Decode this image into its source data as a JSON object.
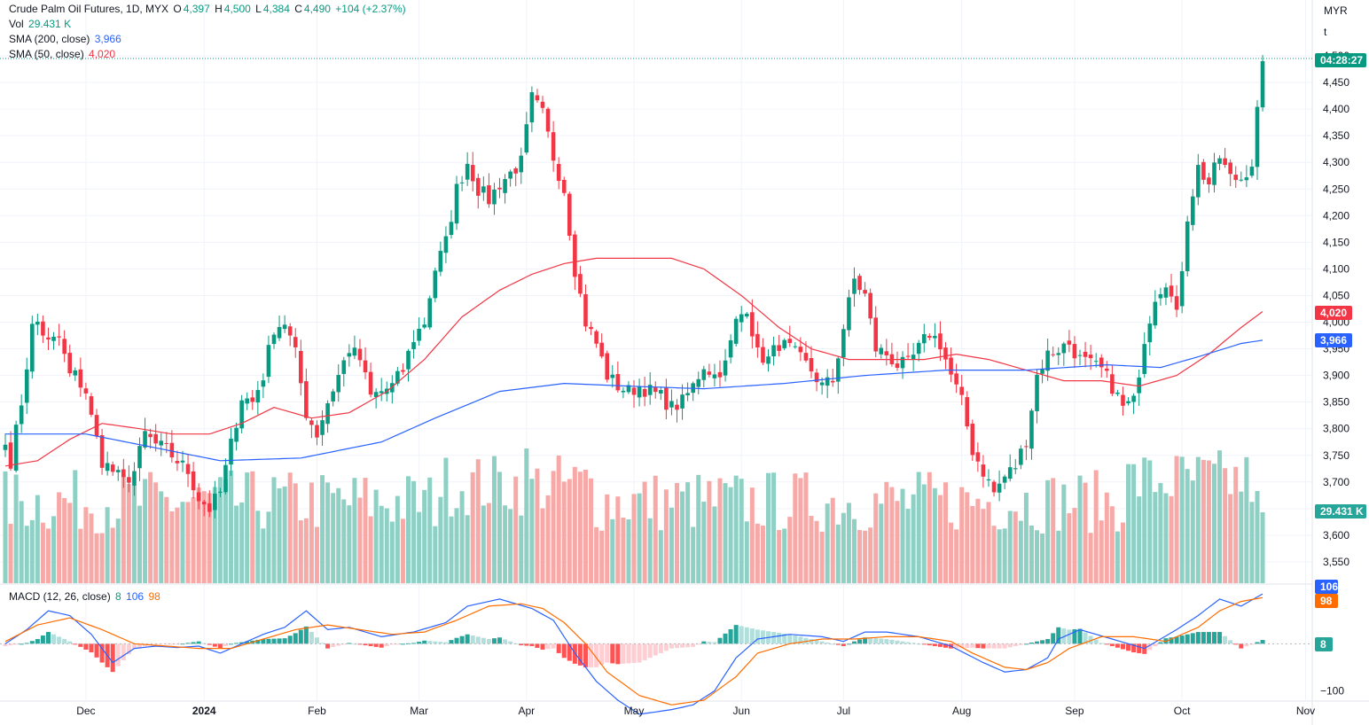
{
  "legend": {
    "symbol": "Crude Palm Oil Futures, 1D, MYX",
    "o_label": "O",
    "o": "4,397",
    "h_label": "H",
    "h": "4,500",
    "l_label": "L",
    "l": "4,384",
    "c_label": "C",
    "c": "4,490",
    "change": "+104 (+2.37%)",
    "vol_label": "Vol",
    "vol": "29.431 K",
    "sma200_label": "SMA (200, close)",
    "sma200": "3,966",
    "sma50_label": "SMA (50, close)",
    "sma50": "4,020",
    "macd_label": "MACD (12, 26, close)",
    "macd": "8",
    "macd_line": "106",
    "macd_signal": "98"
  },
  "scale": {
    "currency": "MYR",
    "unit": "t"
  },
  "badges": {
    "countdown": "04:28:27",
    "sma50": "4,020",
    "sma200": "3,966",
    "volume": "29.431 K",
    "macd_line": "106",
    "macd_signal": "98",
    "macd_hist": "8"
  },
  "colors": {
    "up": "#089981",
    "down": "#f23645",
    "sma200": "#2962ff",
    "sma50": "#f23645",
    "macd": "#2962ff",
    "signal": "#ff6d00",
    "vol_up": "#8fd0c5",
    "vol_down": "#f7a9a7"
  },
  "chart_data": {
    "type": "candlestick",
    "price_ticks": [
      3550,
      3600,
      3650,
      3700,
      3750,
      3800,
      3850,
      3900,
      3950,
      4000,
      4050,
      4100,
      4150,
      4200,
      4250,
      4300,
      4350,
      4400,
      4450,
      4500
    ],
    "price_tick_labels": [
      "3,550",
      "3,600",
      "3,650",
      "3,700",
      "3,750",
      "3,800",
      "3,850",
      "3,900",
      "3,950",
      "4,000",
      "4,050",
      "4,100",
      "4,150",
      "4,200",
      "4,250",
      "4,300",
      "4,350",
      "4,400",
      "4,450",
      "4,500"
    ],
    "macd_ticks": [
      -100
    ],
    "macd_tick_labels": [
      "−100"
    ],
    "x_labels": [
      {
        "label": "Dec",
        "i": 15,
        "bold": false
      },
      {
        "label": "2024",
        "i": 37,
        "bold": true
      },
      {
        "label": "Feb",
        "i": 58,
        "bold": false
      },
      {
        "label": "Mar",
        "i": 77,
        "bold": false
      },
      {
        "label": "Apr",
        "i": 97,
        "bold": false
      },
      {
        "label": "May",
        "i": 117,
        "bold": false
      },
      {
        "label": "Jun",
        "i": 137,
        "bold": false
      },
      {
        "label": "Jul",
        "i": 156,
        "bold": false
      },
      {
        "label": "Aug",
        "i": 178,
        "bold": false
      },
      {
        "label": "Sep",
        "i": 199,
        "bold": false
      },
      {
        "label": "Oct",
        "i": 219,
        "bold": false
      },
      {
        "label": "Nov",
        "i": 242,
        "bold": false
      }
    ],
    "anchors": [
      [
        0,
        3770
      ],
      [
        1,
        3740
      ],
      [
        3,
        3850
      ],
      [
        4,
        3920
      ],
      [
        5,
        3990
      ],
      [
        6,
        4000
      ],
      [
        8,
        3960
      ],
      [
        10,
        3970
      ],
      [
        12,
        3900
      ],
      [
        13,
        3900
      ],
      [
        15,
        3870
      ],
      [
        16,
        3820
      ],
      [
        18,
        3740
      ],
      [
        20,
        3720
      ],
      [
        22,
        3700
      ],
      [
        24,
        3720
      ],
      [
        26,
        3790
      ],
      [
        28,
        3770
      ],
      [
        30,
        3760
      ],
      [
        32,
        3740
      ],
      [
        34,
        3720
      ],
      [
        36,
        3670
      ],
      [
        38,
        3650
      ],
      [
        40,
        3680
      ],
      [
        42,
        3770
      ],
      [
        44,
        3860
      ],
      [
        46,
        3850
      ],
      [
        48,
        3900
      ],
      [
        50,
        3990
      ],
      [
        52,
        4000
      ],
      [
        54,
        3940
      ],
      [
        56,
        3830
      ],
      [
        58,
        3790
      ],
      [
        60,
        3850
      ],
      [
        62,
        3900
      ],
      [
        64,
        3950
      ],
      [
        66,
        3930
      ],
      [
        68,
        3860
      ],
      [
        70,
        3870
      ],
      [
        72,
        3880
      ],
      [
        74,
        3910
      ],
      [
        76,
        3970
      ],
      [
        78,
        4000
      ],
      [
        80,
        4100
      ],
      [
        82,
        4150
      ],
      [
        84,
        4250
      ],
      [
        86,
        4300
      ],
      [
        88,
        4250
      ],
      [
        90,
        4230
      ],
      [
        92,
        4260
      ],
      [
        94,
        4280
      ],
      [
        96,
        4300
      ],
      [
        98,
        4420
      ],
      [
        100,
        4390
      ],
      [
        102,
        4310
      ],
      [
        104,
        4250
      ],
      [
        106,
        4100
      ],
      [
        108,
        4000
      ],
      [
        110,
        3960
      ],
      [
        112,
        3900
      ],
      [
        114,
        3880
      ],
      [
        116,
        3870
      ],
      [
        118,
        3880
      ],
      [
        120,
        3870
      ],
      [
        122,
        3860
      ],
      [
        124,
        3840
      ],
      [
        126,
        3850
      ],
      [
        128,
        3880
      ],
      [
        130,
        3920
      ],
      [
        132,
        3900
      ],
      [
        134,
        3920
      ],
      [
        136,
        4000
      ],
      [
        138,
        4030
      ],
      [
        140,
        3940
      ],
      [
        142,
        3930
      ],
      [
        144,
        3960
      ],
      [
        146,
        3950
      ],
      [
        148,
        3930
      ],
      [
        150,
        3910
      ],
      [
        152,
        3880
      ],
      [
        154,
        3890
      ],
      [
        156,
        3990
      ],
      [
        158,
        4080
      ],
      [
        160,
        4050
      ],
      [
        162,
        3950
      ],
      [
        164,
        3940
      ],
      [
        166,
        3920
      ],
      [
        168,
        3920
      ],
      [
        170,
        3950
      ],
      [
        172,
        3980
      ],
      [
        174,
        3960
      ],
      [
        176,
        3900
      ],
      [
        178,
        3850
      ],
      [
        180,
        3760
      ],
      [
        182,
        3720
      ],
      [
        184,
        3680
      ],
      [
        186,
        3710
      ],
      [
        188,
        3730
      ],
      [
        190,
        3780
      ],
      [
        192,
        3900
      ],
      [
        194,
        3940
      ],
      [
        196,
        3950
      ],
      [
        198,
        3960
      ],
      [
        200,
        3930
      ],
      [
        202,
        3920
      ],
      [
        204,
        3910
      ],
      [
        206,
        3880
      ],
      [
        208,
        3840
      ],
      [
        210,
        3850
      ],
      [
        212,
        3970
      ],
      [
        214,
        4050
      ],
      [
        216,
        4080
      ],
      [
        218,
        4010
      ],
      [
        220,
        4200
      ],
      [
        222,
        4290
      ],
      [
        224,
        4260
      ],
      [
        226,
        4310
      ],
      [
        228,
        4270
      ],
      [
        230,
        4270
      ],
      [
        232,
        4300
      ],
      [
        234,
        4490
      ]
    ],
    "sma50_anchors": [
      [
        0,
        3730
      ],
      [
        6,
        3740
      ],
      [
        12,
        3780
      ],
      [
        18,
        3810
      ],
      [
        25,
        3800
      ],
      [
        31,
        3790
      ],
      [
        38,
        3790
      ],
      [
        44,
        3810
      ],
      [
        50,
        3840
      ],
      [
        57,
        3820
      ],
      [
        64,
        3830
      ],
      [
        71,
        3870
      ],
      [
        78,
        3930
      ],
      [
        85,
        4010
      ],
      [
        92,
        4060
      ],
      [
        98,
        4090
      ],
      [
        104,
        4110
      ],
      [
        110,
        4120
      ],
      [
        118,
        4120
      ],
      [
        124,
        4120
      ],
      [
        130,
        4100
      ],
      [
        137,
        4050
      ],
      [
        144,
        3990
      ],
      [
        150,
        3950
      ],
      [
        157,
        3930
      ],
      [
        164,
        3930
      ],
      [
        171,
        3930
      ],
      [
        177,
        3940
      ],
      [
        183,
        3930
      ],
      [
        190,
        3910
      ],
      [
        197,
        3890
      ],
      [
        204,
        3890
      ],
      [
        211,
        3880
      ],
      [
        218,
        3900
      ],
      [
        224,
        3940
      ],
      [
        230,
        3990
      ],
      [
        234,
        4020
      ]
    ],
    "sma200_anchors": [
      [
        0,
        3790
      ],
      [
        15,
        3790
      ],
      [
        30,
        3760
      ],
      [
        40,
        3740
      ],
      [
        55,
        3745
      ],
      [
        70,
        3775
      ],
      [
        80,
        3820
      ],
      [
        92,
        3870
      ],
      [
        104,
        3885
      ],
      [
        116,
        3880
      ],
      [
        130,
        3875
      ],
      [
        145,
        3885
      ],
      [
        160,
        3900
      ],
      [
        175,
        3910
      ],
      [
        190,
        3910
      ],
      [
        205,
        3920
      ],
      [
        215,
        3915
      ],
      [
        222,
        3935
      ],
      [
        230,
        3960
      ],
      [
        234,
        3966
      ]
    ],
    "macd_anchors": [
      [
        0,
        0
      ],
      [
        4,
        30
      ],
      [
        8,
        70
      ],
      [
        12,
        60
      ],
      [
        16,
        20
      ],
      [
        20,
        -40
      ],
      [
        24,
        -10
      ],
      [
        28,
        -5
      ],
      [
        32,
        -8
      ],
      [
        36,
        -5
      ],
      [
        40,
        -20
      ],
      [
        44,
        0
      ],
      [
        48,
        20
      ],
      [
        52,
        35
      ],
      [
        56,
        70
      ],
      [
        60,
        30
      ],
      [
        64,
        35
      ],
      [
        70,
        15
      ],
      [
        76,
        25
      ],
      [
        82,
        45
      ],
      [
        86,
        80
      ],
      [
        92,
        95
      ],
      [
        98,
        75
      ],
      [
        102,
        50
      ],
      [
        106,
        -20
      ],
      [
        110,
        -80
      ],
      [
        114,
        -120
      ],
      [
        118,
        -150
      ],
      [
        124,
        -140
      ],
      [
        128,
        -130
      ],
      [
        132,
        -100
      ],
      [
        136,
        -30
      ],
      [
        140,
        10
      ],
      [
        146,
        20
      ],
      [
        152,
        15
      ],
      [
        156,
        5
      ],
      [
        160,
        25
      ],
      [
        164,
        25
      ],
      [
        170,
        15
      ],
      [
        176,
        -5
      ],
      [
        182,
        -40
      ],
      [
        186,
        -60
      ],
      [
        190,
        -55
      ],
      [
        194,
        -30
      ],
      [
        196,
        10
      ],
      [
        200,
        30
      ],
      [
        206,
        10
      ],
      [
        212,
        -10
      ],
      [
        218,
        30
      ],
      [
        222,
        60
      ],
      [
        226,
        95
      ],
      [
        230,
        80
      ],
      [
        234,
        106
      ]
    ],
    "signal_anchors": [
      [
        0,
        5
      ],
      [
        6,
        40
      ],
      [
        12,
        55
      ],
      [
        18,
        30
      ],
      [
        24,
        0
      ],
      [
        30,
        -5
      ],
      [
        36,
        -10
      ],
      [
        42,
        -10
      ],
      [
        48,
        10
      ],
      [
        54,
        30
      ],
      [
        60,
        40
      ],
      [
        66,
        30
      ],
      [
        72,
        20
      ],
      [
        78,
        25
      ],
      [
        84,
        50
      ],
      [
        90,
        80
      ],
      [
        96,
        85
      ],
      [
        100,
        75
      ],
      [
        104,
        45
      ],
      [
        108,
        0
      ],
      [
        112,
        -60
      ],
      [
        118,
        -110
      ],
      [
        124,
        -130
      ],
      [
        130,
        -120
      ],
      [
        136,
        -70
      ],
      [
        140,
        -20
      ],
      [
        146,
        0
      ],
      [
        152,
        10
      ],
      [
        158,
        10
      ],
      [
        164,
        15
      ],
      [
        170,
        15
      ],
      [
        176,
        5
      ],
      [
        180,
        -20
      ],
      [
        186,
        -50
      ],
      [
        190,
        -55
      ],
      [
        194,
        -40
      ],
      [
        198,
        -10
      ],
      [
        204,
        15
      ],
      [
        210,
        15
      ],
      [
        216,
        5
      ],
      [
        222,
        35
      ],
      [
        226,
        70
      ],
      [
        230,
        90
      ],
      [
        234,
        98
      ]
    ],
    "price_range": [
      3510,
      4505
    ],
    "macd_range": [
      -120,
      125
    ]
  }
}
